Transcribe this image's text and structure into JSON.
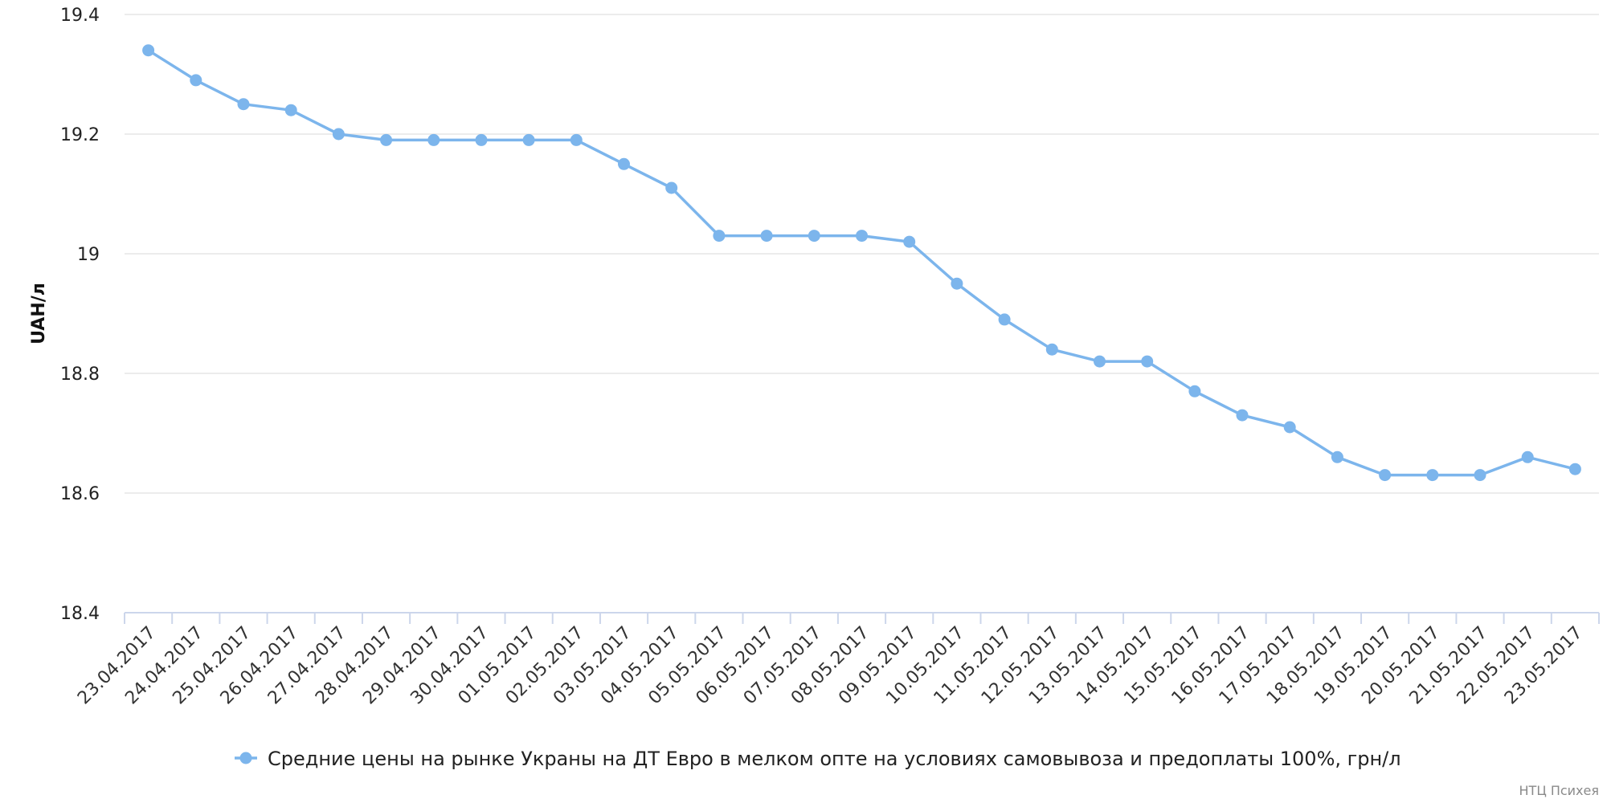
{
  "chart_data": {
    "type": "line",
    "title": "",
    "ylabel": "UAH/л",
    "xlabel": "",
    "ylim": [
      18.4,
      19.4
    ],
    "y_ticks": [
      18.4,
      18.6,
      18.8,
      19,
      19.2,
      19.4
    ],
    "y_tick_labels": [
      "18.4",
      "18.6",
      "18.8",
      "19",
      "19.2",
      "19.4"
    ],
    "grid": true,
    "legend_position": "bottom-center",
    "categories": [
      "23.04.2017",
      "24.04.2017",
      "25.04.2017",
      "26.04.2017",
      "27.04.2017",
      "28.04.2017",
      "29.04.2017",
      "30.04.2017",
      "01.05.2017",
      "02.05.2017",
      "03.05.2017",
      "04.05.2017",
      "05.05.2017",
      "06.05.2017",
      "07.05.2017",
      "08.05.2017",
      "09.05.2017",
      "10.05.2017",
      "11.05.2017",
      "12.05.2017",
      "13.05.2017",
      "14.05.2017",
      "15.05.2017",
      "16.05.2017",
      "17.05.2017",
      "18.05.2017",
      "19.05.2017",
      "20.05.2017",
      "21.05.2017",
      "22.05.2017",
      "23.05.2017"
    ],
    "series": [
      {
        "name": "Средние цены на рынке Украны на ДТ Евро в мелком опте на условиях самовывоза и предоплаты 100%, грн/л",
        "color": "#7cb5ec",
        "values": [
          19.34,
          19.29,
          19.25,
          19.24,
          19.2,
          19.19,
          19.19,
          19.19,
          19.19,
          19.19,
          19.15,
          19.11,
          19.03,
          19.03,
          19.03,
          19.03,
          19.02,
          18.95,
          18.89,
          18.84,
          18.82,
          18.82,
          18.77,
          18.73,
          18.71,
          18.66,
          18.63,
          18.63,
          18.63,
          18.66,
          18.64
        ]
      }
    ]
  },
  "credits": "НТЦ Психея",
  "colors": {
    "grid": "#e6e6e6",
    "axis": "#ccd6eb",
    "series": "#7cb5ec"
  }
}
